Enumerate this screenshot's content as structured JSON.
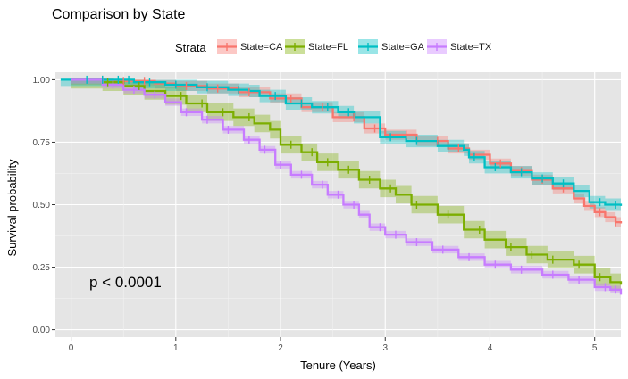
{
  "chart_data": {
    "type": "line",
    "subtype": "kaplan-meier step curves with confidence bands and censoring ticks",
    "title": "Comparison by State",
    "xlabel": "Tenure (Years)",
    "ylabel": "Survival probability",
    "xlim": [
      -0.15,
      5.25
    ],
    "ylim": [
      -0.03,
      1.03
    ],
    "x_ticks": [
      "0",
      "1",
      "2",
      "3",
      "4",
      "5"
    ],
    "y_ticks": [
      "0.00",
      "0.25",
      "0.50",
      "0.75",
      "1.00"
    ],
    "grid": true,
    "background": "#e5e5e5",
    "legend_position": "top",
    "legend_title": "Strata",
    "annotation": "p < 0.0001",
    "series": [
      {
        "name": "State=CA",
        "color": "#f8766d",
        "points": [
          [
            0,
            1.0
          ],
          [
            0.4,
            0.995
          ],
          [
            0.8,
            0.985
          ],
          [
            1.0,
            0.975
          ],
          [
            1.3,
            0.965
          ],
          [
            1.6,
            0.95
          ],
          [
            1.9,
            0.925
          ],
          [
            2.2,
            0.89
          ],
          [
            2.5,
            0.85
          ],
          [
            2.8,
            0.805
          ],
          [
            3.0,
            0.78
          ],
          [
            3.3,
            0.755
          ],
          [
            3.6,
            0.725
          ],
          [
            3.8,
            0.7
          ],
          [
            4.0,
            0.665
          ],
          [
            4.2,
            0.635
          ],
          [
            4.4,
            0.6
          ],
          [
            4.6,
            0.565
          ],
          [
            4.8,
            0.525
          ],
          [
            4.9,
            0.495
          ],
          [
            5.0,
            0.47
          ],
          [
            5.1,
            0.45
          ],
          [
            5.2,
            0.43
          ],
          [
            5.25,
            0.425
          ]
        ],
        "band": 0.02,
        "censor_x": [
          0.3,
          0.5,
          0.7,
          1.1,
          1.4,
          1.7,
          2.1,
          2.4,
          2.7,
          2.9,
          3.2,
          3.5,
          3.7,
          4.1,
          4.3,
          4.5,
          4.7,
          5.05,
          5.2
        ]
      },
      {
        "name": "State=FL",
        "color": "#7cae00",
        "points": [
          [
            0,
            1.0
          ],
          [
            0.3,
            0.99
          ],
          [
            0.5,
            0.975
          ],
          [
            0.7,
            0.955
          ],
          [
            0.9,
            0.935
          ],
          [
            1.1,
            0.905
          ],
          [
            1.3,
            0.87
          ],
          [
            1.55,
            0.85
          ],
          [
            1.75,
            0.825
          ],
          [
            1.9,
            0.8
          ],
          [
            2.0,
            0.74
          ],
          [
            2.2,
            0.71
          ],
          [
            2.35,
            0.67
          ],
          [
            2.55,
            0.64
          ],
          [
            2.75,
            0.6
          ],
          [
            2.95,
            0.565
          ],
          [
            3.1,
            0.54
          ],
          [
            3.25,
            0.5
          ],
          [
            3.5,
            0.46
          ],
          [
            3.75,
            0.4
          ],
          [
            3.95,
            0.36
          ],
          [
            4.15,
            0.33
          ],
          [
            4.35,
            0.3
          ],
          [
            4.55,
            0.28
          ],
          [
            4.8,
            0.26
          ],
          [
            5.0,
            0.21
          ],
          [
            5.15,
            0.19
          ],
          [
            5.25,
            0.18
          ]
        ],
        "band": 0.035,
        "censor_x": [
          0.35,
          0.65,
          1.05,
          1.25,
          1.45,
          1.7,
          2.1,
          2.3,
          2.45,
          2.65,
          2.85,
          3.05,
          3.3,
          3.6,
          3.9,
          4.2,
          4.4,
          4.6,
          4.85,
          5.05
        ]
      },
      {
        "name": "State=GA",
        "color": "#00bfc4",
        "points": [
          [
            -0.1,
            1.0
          ],
          [
            0.6,
            0.99
          ],
          [
            0.9,
            0.98
          ],
          [
            1.2,
            0.97
          ],
          [
            1.5,
            0.96
          ],
          [
            1.7,
            0.955
          ],
          [
            1.8,
            0.935
          ],
          [
            2.05,
            0.905
          ],
          [
            2.3,
            0.89
          ],
          [
            2.55,
            0.87
          ],
          [
            2.7,
            0.85
          ],
          [
            2.95,
            0.77
          ],
          [
            3.2,
            0.755
          ],
          [
            3.5,
            0.735
          ],
          [
            3.75,
            0.72
          ],
          [
            3.8,
            0.69
          ],
          [
            3.95,
            0.65
          ],
          [
            4.2,
            0.63
          ],
          [
            4.4,
            0.605
          ],
          [
            4.6,
            0.585
          ],
          [
            4.8,
            0.555
          ],
          [
            4.95,
            0.51
          ],
          [
            5.1,
            0.5
          ],
          [
            5.25,
            0.495
          ]
        ],
        "band": 0.025,
        "censor_x": [
          0.15,
          0.3,
          0.45,
          0.55,
          0.75,
          1.0,
          1.3,
          1.6,
          1.95,
          2.2,
          2.45,
          2.65,
          3.05,
          3.3,
          3.6,
          3.85,
          4.05,
          4.3,
          4.5,
          4.7,
          5.05,
          5.2
        ]
      },
      {
        "name": "State=TX",
        "color": "#c77cff",
        "points": [
          [
            0,
            1.0
          ],
          [
            0.3,
            0.98
          ],
          [
            0.5,
            0.96
          ],
          [
            0.7,
            0.94
          ],
          [
            0.9,
            0.91
          ],
          [
            1.05,
            0.87
          ],
          [
            1.25,
            0.84
          ],
          [
            1.45,
            0.8
          ],
          [
            1.65,
            0.76
          ],
          [
            1.8,
            0.72
          ],
          [
            1.95,
            0.66
          ],
          [
            2.1,
            0.62
          ],
          [
            2.3,
            0.58
          ],
          [
            2.45,
            0.54
          ],
          [
            2.6,
            0.5
          ],
          [
            2.75,
            0.46
          ],
          [
            2.85,
            0.41
          ],
          [
            3.0,
            0.38
          ],
          [
            3.2,
            0.35
          ],
          [
            3.45,
            0.32
          ],
          [
            3.7,
            0.29
          ],
          [
            3.95,
            0.26
          ],
          [
            4.2,
            0.24
          ],
          [
            4.5,
            0.22
          ],
          [
            4.75,
            0.2
          ],
          [
            5.0,
            0.17
          ],
          [
            5.15,
            0.16
          ],
          [
            5.25,
            0.14
          ]
        ],
        "band": 0.015,
        "censor_x": [
          0.4,
          0.6,
          0.8,
          1.1,
          1.3,
          1.5,
          1.7,
          1.85,
          2.0,
          2.2,
          2.4,
          2.55,
          2.7,
          2.95,
          3.1,
          3.3,
          3.55,
          3.8,
          4.05,
          4.3,
          4.6,
          4.85,
          5.1,
          5.2
        ]
      }
    ]
  }
}
